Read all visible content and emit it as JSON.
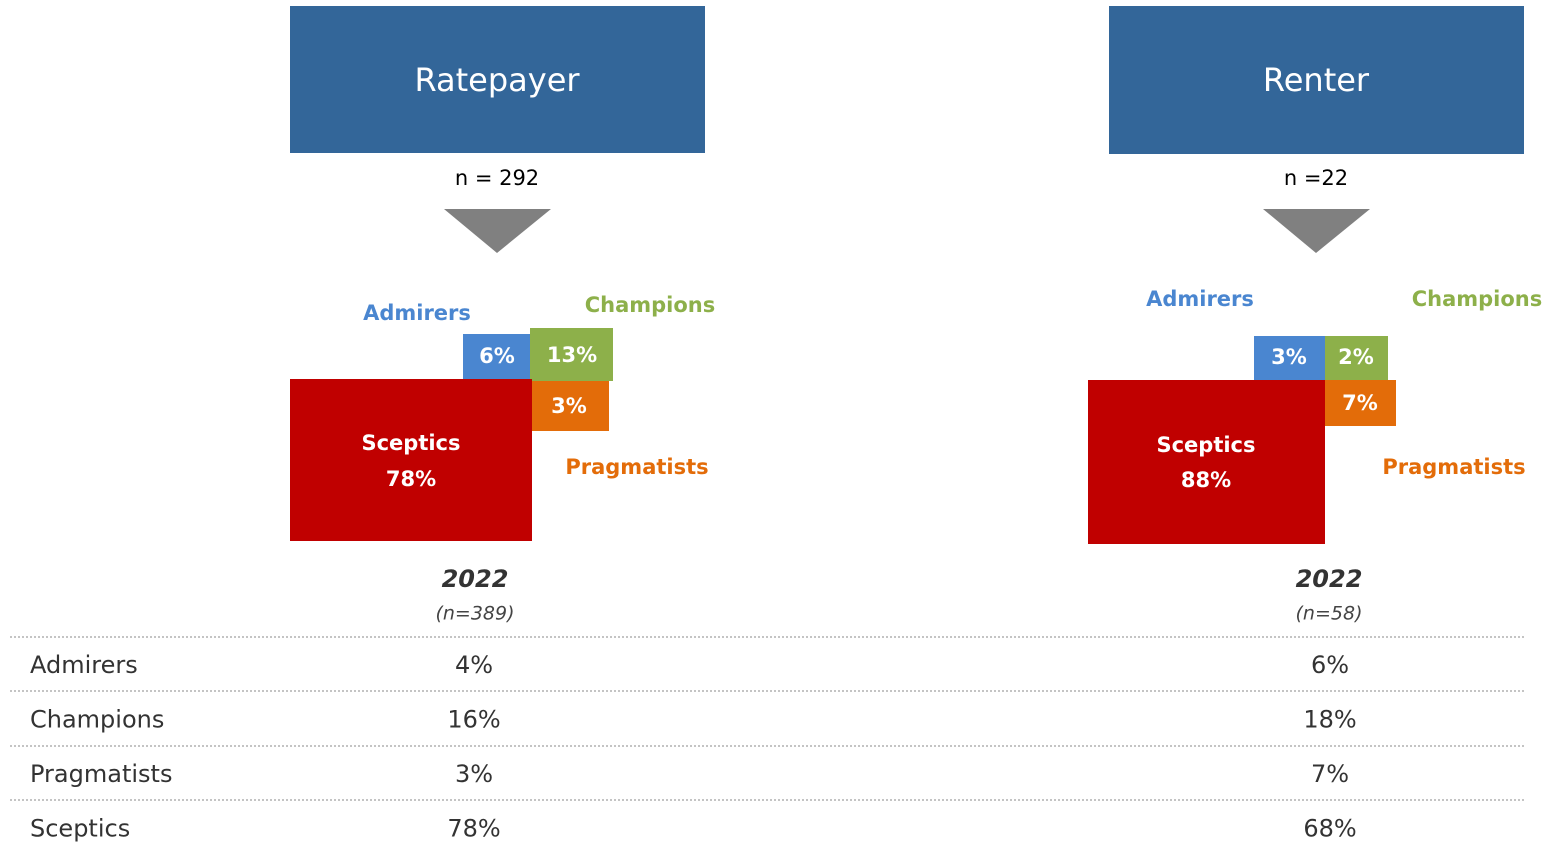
{
  "panels": [
    {
      "title": "Ratepayer",
      "n": "n = 292",
      "segments": {
        "admirers": {
          "label": "Admirers",
          "value": "6%"
        },
        "champions": {
          "label": "Champions",
          "value": "13%"
        },
        "pragmatists": {
          "label": "Pragmatists",
          "value": "3%"
        },
        "sceptics": {
          "label": "Sceptics",
          "value": "78%"
        }
      },
      "year": "2022",
      "year_n": "(n=389)"
    },
    {
      "title": "Renter",
      "n": "n =22",
      "segments": {
        "admirers": {
          "label": "Admirers",
          "value": "3%"
        },
        "champions": {
          "label": "Champions",
          "value": "2%"
        },
        "pragmatists": {
          "label": "Pragmatists",
          "value": "7%"
        },
        "sceptics": {
          "label": "Sceptics",
          "value": "88%"
        }
      },
      "year": "2022",
      "year_n": "(n=58)"
    }
  ],
  "table": {
    "rows": [
      [
        "Admirers",
        "4%",
        "6%"
      ],
      [
        "Champions",
        "16%",
        "18%"
      ],
      [
        "Pragmatists",
        "3%",
        "7%"
      ],
      [
        "Sceptics",
        "78%",
        "68%"
      ]
    ]
  }
}
